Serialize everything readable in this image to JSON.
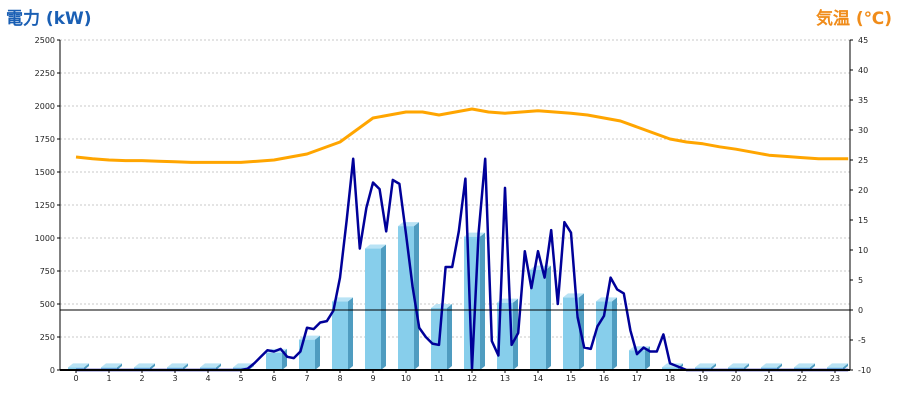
{
  "chart_data": {
    "type": "bar",
    "left_axis_label": "電力 (kW)",
    "right_axis_label": "気温 (℃)",
    "colors": {
      "left_label": "#1a5fb4",
      "right_label": "#f08c1a",
      "bar_face": "#87ceeb",
      "bar_side": "#4f9cc0",
      "bar_top": "#b9e3f5",
      "power_line": "#000099",
      "temp_line": "#ffa500",
      "grid": "#c8c8c8",
      "axis": "#000000"
    },
    "categories": [
      "0",
      "1",
      "2",
      "3",
      "4",
      "5",
      "6",
      "7",
      "8",
      "9",
      "10",
      "11",
      "12",
      "13",
      "14",
      "15",
      "16",
      "17",
      "18",
      "19",
      "20",
      "21",
      "22",
      "23"
    ],
    "y_left": {
      "min": 0,
      "max": 2500,
      "ticks": [
        "0",
        "250",
        "500",
        "750",
        "1000",
        "1250",
        "1500",
        "1750",
        "2000",
        "2250",
        "2500"
      ]
    },
    "y_right": {
      "min": -10,
      "max": 45,
      "ticks": [
        "-10",
        "-5",
        "0",
        "5",
        "10",
        "15",
        "20",
        "25",
        "30",
        "35",
        "40",
        "45"
      ]
    },
    "hourly_bars": [
      20,
      20,
      20,
      20,
      20,
      20,
      130,
      230,
      520,
      920,
      1090,
      470,
      1010,
      510,
      760,
      550,
      520,
      150,
      20,
      20,
      20,
      20,
      20,
      20
    ],
    "power_line": {
      "x": [
        0,
        0.5,
        1,
        1.5,
        2,
        2.5,
        3,
        3.5,
        4,
        4.5,
        5,
        5.2,
        5.4,
        5.6,
        5.8,
        6,
        6.2,
        6.4,
        6.6,
        6.8,
        7,
        7.2,
        7.4,
        7.6,
        7.8,
        8,
        8.2,
        8.4,
        8.6,
        8.8,
        9,
        9.2,
        9.4,
        9.6,
        9.8,
        10,
        10.2,
        10.4,
        10.6,
        10.8,
        11,
        11.2,
        11.4,
        11.6,
        11.8,
        12,
        12.2,
        12.4,
        12.6,
        12.8,
        13,
        13.2,
        13.4,
        13.6,
        13.8,
        14,
        14.2,
        14.4,
        14.6,
        14.8,
        15,
        15.2,
        15.4,
        15.6,
        15.8,
        16,
        16.2,
        16.4,
        16.6,
        16.8,
        17,
        17.2,
        17.4,
        17.6,
        17.8,
        18,
        18.5,
        19,
        19.5,
        20,
        20.5,
        21,
        21.5,
        22,
        22.5,
        23,
        23.4
      ],
      "y": [
        0,
        0,
        0,
        0,
        0,
        0,
        0,
        0,
        0,
        0,
        0,
        10,
        50,
        100,
        150,
        140,
        160,
        100,
        90,
        140,
        320,
        310,
        360,
        370,
        450,
        700,
        1130,
        1600,
        920,
        1230,
        1420,
        1370,
        1050,
        1440,
        1410,
        1030,
        630,
        320,
        250,
        200,
        190,
        780,
        780,
        1050,
        1450,
        10,
        1040,
        1600,
        220,
        110,
        1380,
        190,
        280,
        900,
        620,
        900,
        700,
        1060,
        500,
        1120,
        1040,
        400,
        170,
        160,
        330,
        410,
        700,
        610,
        580,
        300,
        120,
        170,
        140,
        140,
        270,
        50,
        0,
        0,
        0,
        0,
        0,
        0,
        0,
        0,
        0,
        0,
        0
      ]
    },
    "temperature": {
      "x": [
        0,
        0.5,
        1,
        1.5,
        2,
        2.5,
        3,
        3.5,
        4,
        4.5,
        5,
        5.5,
        6,
        6.5,
        7,
        7.5,
        8,
        8.5,
        9,
        9.5,
        10,
        10.5,
        11,
        11.5,
        12,
        12.5,
        13,
        13.5,
        14,
        14.5,
        15,
        15.5,
        16,
        16.5,
        17,
        17.5,
        18,
        18.5,
        19,
        19.5,
        20,
        20.5,
        21,
        21.5,
        22,
        22.5,
        23,
        23.4
      ],
      "y": [
        25.5,
        25.2,
        25.0,
        24.9,
        24.9,
        24.8,
        24.7,
        24.6,
        24.6,
        24.6,
        24.6,
        24.8,
        25.0,
        25.5,
        26.0,
        27,
        28,
        30,
        32,
        32.5,
        33,
        33,
        32.5,
        33,
        33.5,
        33,
        32.8,
        33,
        33.2,
        33,
        32.8,
        32.5,
        32,
        31.5,
        30.5,
        29.5,
        28.5,
        28,
        27.7,
        27.2,
        26.8,
        26.3,
        25.8,
        25.6,
        25.4,
        25.2,
        25.2,
        25.2
      ]
    }
  }
}
